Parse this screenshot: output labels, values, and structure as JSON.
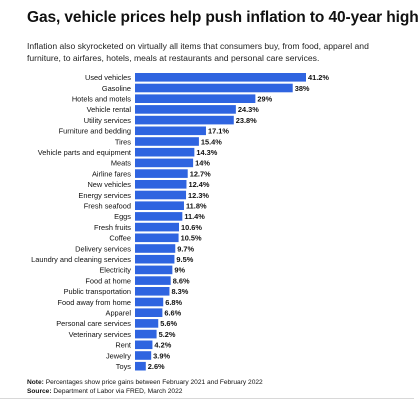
{
  "header": {
    "title": "Gas, vehicle prices help push inflation to 40-year high",
    "subtitle": "Inflation also skyrocketed on virtually all items that consumers buy, from food, apparel and furniture, to airfares, hotels, meals at restaurants and personal care services."
  },
  "footer": {
    "note_label": "Note:",
    "note_text": "Percentages show price gains between February 2021 and February 2022",
    "source_label": "Source:",
    "source_text": "Department of Labor via FRED, March 2022"
  },
  "colors": {
    "bar": "#2f64e0",
    "text": "#111111"
  },
  "chart_data": {
    "type": "bar",
    "orientation": "horizontal",
    "title": "Gas, vehicle prices help push inflation to 40-year high",
    "subtitle": "Inflation also skyrocketed on virtually all items that consumers buy, from food, apparel and furniture, to airfares, hotels, meals at restaurants and personal care services.",
    "xlabel": "",
    "ylabel": "",
    "xlim": [
      0,
      41.2
    ],
    "grid": false,
    "legend": "none",
    "categories": [
      "Used vehicles",
      "Gasoline",
      "Hotels and motels",
      "Vehicle rental",
      "Utility services",
      "Furniture and bedding",
      "Tires",
      "Vehicle parts and equipment",
      "Meats",
      "Airline fares",
      "New vehicles",
      "Energy services",
      "Fresh seafood",
      "Eggs",
      "Fresh fruits",
      "Coffee",
      "Delivery services",
      "Laundry and cleaning services",
      "Electricity",
      "Food at home",
      "Public transportation",
      "Food away from home",
      "Apparel",
      "Personal care services",
      "Veterinary services",
      "Rent",
      "Jewelry",
      "Toys"
    ],
    "values": [
      41.2,
      38,
      29,
      24.3,
      23.8,
      17.1,
      15.4,
      14.3,
      14,
      12.7,
      12.4,
      12.3,
      11.8,
      11.4,
      10.6,
      10.5,
      9.7,
      9.5,
      9,
      8.6,
      8.3,
      6.8,
      6.6,
      5.6,
      5.2,
      4.2,
      3.9,
      2.6
    ],
    "value_labels": [
      "41.2%",
      "38%",
      "29%",
      "24.3%",
      "23.8%",
      "17.1%",
      "15.4%",
      "14.3%",
      "14%",
      "12.7%",
      "12.4%",
      "12.3%",
      "11.8%",
      "11.4%",
      "10.6%",
      "10.5%",
      "9.7%",
      "9.5%",
      "9%",
      "8.6%",
      "8.3%",
      "6.8%",
      "6.6%",
      "5.6%",
      "5.2%",
      "4.2%",
      "3.9%",
      "2.6%"
    ],
    "unit": "%"
  }
}
